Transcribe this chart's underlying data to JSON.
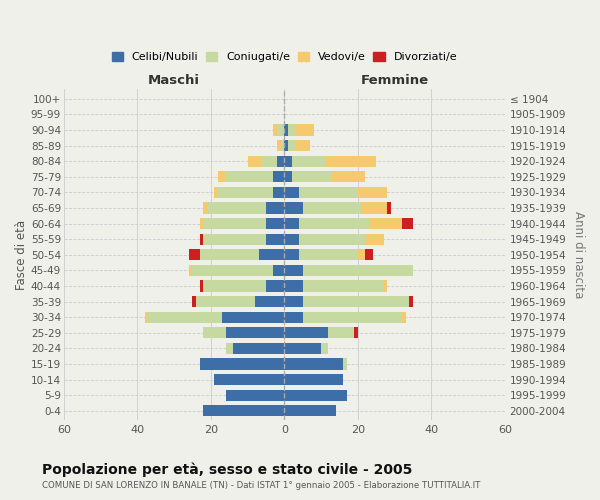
{
  "age_groups": [
    "0-4",
    "5-9",
    "10-14",
    "15-19",
    "20-24",
    "25-29",
    "30-34",
    "35-39",
    "40-44",
    "45-49",
    "50-54",
    "55-59",
    "60-64",
    "65-69",
    "70-74",
    "75-79",
    "80-84",
    "85-89",
    "90-94",
    "95-99",
    "100+"
  ],
  "birth_years": [
    "2000-2004",
    "1995-1999",
    "1990-1994",
    "1985-1989",
    "1980-1984",
    "1975-1979",
    "1970-1974",
    "1965-1969",
    "1960-1964",
    "1955-1959",
    "1950-1954",
    "1945-1949",
    "1940-1944",
    "1935-1939",
    "1930-1934",
    "1925-1929",
    "1920-1924",
    "1915-1919",
    "1910-1914",
    "1905-1909",
    "≤ 1904"
  ],
  "colors": {
    "celibe": "#3d6ea8",
    "coniugato": "#c5d9a0",
    "vedovo": "#f5c96e",
    "divorziato": "#cc2020"
  },
  "maschi": {
    "celibe": [
      22,
      16,
      19,
      23,
      14,
      16,
      17,
      8,
      5,
      3,
      7,
      5,
      5,
      5,
      3,
      3,
      2,
      0,
      0,
      0,
      0
    ],
    "coniugato": [
      0,
      0,
      0,
      0,
      2,
      6,
      20,
      16,
      17,
      22,
      16,
      17,
      17,
      16,
      15,
      13,
      4,
      1,
      2,
      0,
      0
    ],
    "vedovo": [
      0,
      0,
      0,
      0,
      0,
      0,
      1,
      0,
      0,
      1,
      0,
      0,
      1,
      1,
      1,
      2,
      4,
      1,
      1,
      0,
      0
    ],
    "divorziato": [
      0,
      0,
      0,
      0,
      0,
      0,
      0,
      1,
      1,
      0,
      3,
      1,
      0,
      0,
      0,
      0,
      0,
      0,
      0,
      0,
      0
    ]
  },
  "femmine": {
    "celibe": [
      14,
      17,
      16,
      16,
      10,
      12,
      5,
      5,
      5,
      5,
      4,
      4,
      4,
      5,
      4,
      2,
      2,
      1,
      1,
      0,
      0
    ],
    "coniugato": [
      0,
      0,
      0,
      1,
      2,
      7,
      27,
      29,
      22,
      30,
      16,
      18,
      19,
      16,
      16,
      11,
      9,
      2,
      2,
      0,
      0
    ],
    "vedovo": [
      0,
      0,
      0,
      0,
      0,
      0,
      1,
      0,
      1,
      0,
      2,
      5,
      9,
      7,
      8,
      9,
      14,
      4,
      5,
      0,
      0
    ],
    "divorziato": [
      0,
      0,
      0,
      0,
      0,
      1,
      0,
      1,
      0,
      0,
      2,
      0,
      3,
      1,
      0,
      0,
      0,
      0,
      0,
      0,
      0
    ]
  },
  "xlim": 60,
  "title": "Popolazione per età, sesso e stato civile - 2005",
  "subtitle": "COMUNE DI SAN LORENZO IN BANALE (TN) - Dati ISTAT 1° gennaio 2005 - Elaborazione TUTTITALIA.IT",
  "ylabel_left": "Fasce di età",
  "ylabel_right": "Anni di nascita",
  "xlabel_left": "Maschi",
  "xlabel_right": "Femmine",
  "legend_labels": [
    "Celibi/Nubili",
    "Coniugati/e",
    "Vedovi/e",
    "Divorziati/e"
  ],
  "bg_color": "#f0f0eb"
}
